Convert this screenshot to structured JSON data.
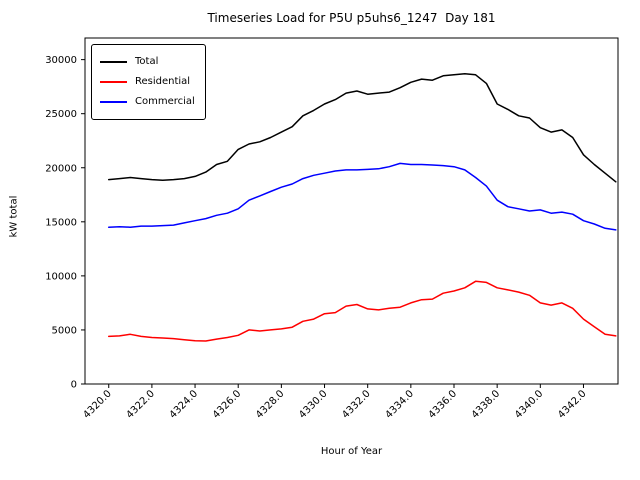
{
  "chart_data": {
    "type": "line",
    "title": "Timeseries Load for P5U p5uhs6_1247  Day 181",
    "xlabel": "Hour of Year",
    "ylabel": "kW total",
    "grid": false,
    "legend_position": "upper left",
    "xlim": [
      4318.9,
      4343.6
    ],
    "ylim": [
      0,
      32000
    ],
    "xticks": [
      {
        "v": 4320,
        "label": "4320.0"
      },
      {
        "v": 4322,
        "label": "4322.0"
      },
      {
        "v": 4324,
        "label": "4324.0"
      },
      {
        "v": 4326,
        "label": "4326.0"
      },
      {
        "v": 4328,
        "label": "4328.0"
      },
      {
        "v": 4330,
        "label": "4330.0"
      },
      {
        "v": 4332,
        "label": "4332.0"
      },
      {
        "v": 4334,
        "label": "4334.0"
      },
      {
        "v": 4336,
        "label": "4336.0"
      },
      {
        "v": 4338,
        "label": "4338.0"
      },
      {
        "v": 4340,
        "label": "4340.0"
      },
      {
        "v": 4342,
        "label": "4342.0"
      }
    ],
    "yticks": [
      {
        "v": 0,
        "label": "0"
      },
      {
        "v": 5000,
        "label": "5000"
      },
      {
        "v": 10000,
        "label": "10000"
      },
      {
        "v": 15000,
        "label": "15000"
      },
      {
        "v": 20000,
        "label": "20000"
      },
      {
        "v": 25000,
        "label": "25000"
      },
      {
        "v": 30000,
        "label": "30000"
      }
    ],
    "x": [
      4320.0,
      4320.5,
      4321.0,
      4321.5,
      4322.0,
      4322.5,
      4323.0,
      4323.5,
      4324.0,
      4324.5,
      4325.0,
      4325.5,
      4326.0,
      4326.5,
      4327.0,
      4327.5,
      4328.0,
      4328.5,
      4329.0,
      4329.5,
      4330.0,
      4330.5,
      4331.0,
      4331.5,
      4332.0,
      4332.5,
      4333.0,
      4333.5,
      4334.0,
      4334.5,
      4335.0,
      4335.5,
      4336.0,
      4336.5,
      4337.0,
      4337.5,
      4338.0,
      4338.5,
      4339.0,
      4339.5,
      4340.0,
      4340.5,
      4341.0,
      4341.5,
      4342.0,
      4342.5,
      4343.0,
      4343.5
    ],
    "series": [
      {
        "name": "Total",
        "color": "#000000",
        "values": [
          18900,
          19000,
          19100,
          19000,
          18900,
          18850,
          18900,
          19000,
          19200,
          19600,
          20300,
          20600,
          21700,
          22200,
          22400,
          22800,
          23300,
          23800,
          24800,
          25300,
          25900,
          26300,
          26900,
          27100,
          26800,
          26900,
          27000,
          27400,
          27900,
          28200,
          28100,
          28500,
          28600,
          28700,
          28600,
          27800,
          25900,
          25400,
          24800,
          24600,
          23700,
          23300,
          23500,
          22800,
          21200,
          20300,
          19500,
          18700
        ]
      },
      {
        "name": "Residential",
        "color": "#ff0000",
        "values": [
          4400,
          4450,
          4600,
          4400,
          4300,
          4250,
          4200,
          4100,
          4000,
          3980,
          4150,
          4300,
          4500,
          5000,
          4900,
          5000,
          5100,
          5250,
          5800,
          6000,
          6500,
          6600,
          7200,
          7350,
          6950,
          6850,
          7000,
          7100,
          7500,
          7800,
          7850,
          8400,
          8600,
          8900,
          9500,
          9400,
          8900,
          8700,
          8500,
          8200,
          7500,
          7300,
          7500,
          7000,
          6000,
          5300,
          4600,
          4450
        ]
      },
      {
        "name": "Commercial",
        "color": "#0000ff",
        "values": [
          14500,
          14550,
          14500,
          14600,
          14600,
          14650,
          14700,
          14900,
          15100,
          15300,
          15600,
          15800,
          16200,
          17000,
          17400,
          17800,
          18200,
          18500,
          19000,
          19300,
          19500,
          19700,
          19800,
          19800,
          19850,
          19900,
          20100,
          20400,
          20300,
          20300,
          20250,
          20200,
          20100,
          19800,
          19100,
          18300,
          17000,
          16400,
          16200,
          16000,
          16100,
          15800,
          15900,
          15700,
          15100,
          14800,
          14400,
          14250
        ]
      }
    ]
  }
}
